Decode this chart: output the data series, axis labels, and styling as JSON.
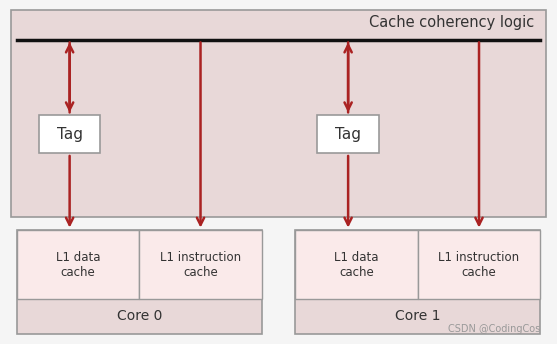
{
  "bg_color": "#f5f5f5",
  "coherency_bg": "#e8d8d8",
  "coherency_text": "Cache coherency logic",
  "text_color": "#333333",
  "core_bg": "#e8d8d8",
  "cache_bg": "#faeaea",
  "tag_bg": "#ffffff",
  "border_color": "#999999",
  "arrow_color": "#aa2222",
  "core0_label": "Core 0",
  "core1_label": "Core 1",
  "tag_label": "Tag",
  "l1data_label": "L1 data\ncache",
  "l1instr_label": "L1 instruction\ncache",
  "watermark": "CSDN @CodingCos",
  "watermark_color": "#999999",
  "fig_w": 5.57,
  "fig_h": 3.44,
  "dpi": 100
}
